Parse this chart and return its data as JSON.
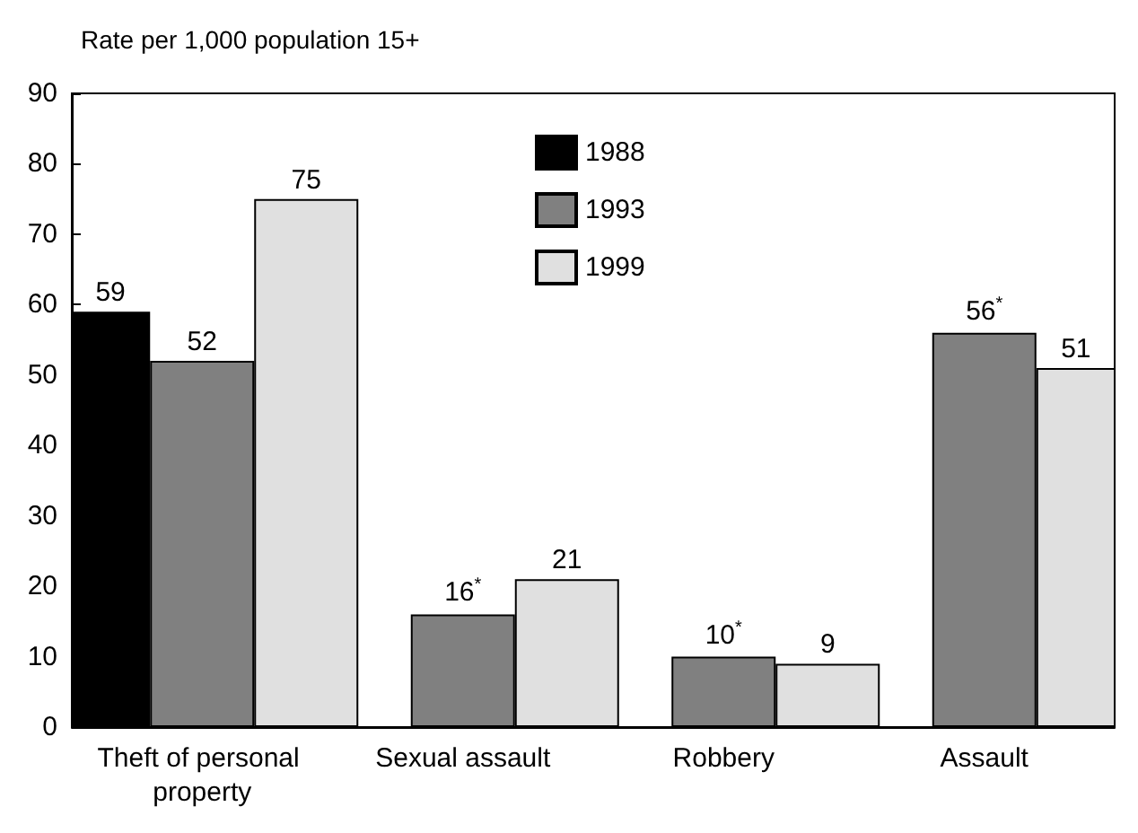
{
  "chart_data": {
    "type": "bar",
    "ylabel": "Rate per 1,000 population 15+",
    "categories": [
      "Theft of personal property",
      "Sexual assault",
      "Robbery",
      "Assault"
    ],
    "series": [
      {
        "name": "1988",
        "color": "#000000",
        "values": [
          59,
          null,
          null,
          null
        ],
        "value_labels": [
          "59",
          null,
          null,
          null
        ]
      },
      {
        "name": "1993",
        "color": "#808080",
        "values": [
          52,
          16,
          10,
          56
        ],
        "value_labels": [
          "52",
          "16$^{*}$",
          "10$^{*}$",
          "56$^{*}$"
        ]
      },
      {
        "name": "1999",
        "color": "#e0e0e0",
        "values": [
          75,
          21,
          9,
          51
        ],
        "value_labels": [
          "75",
          "21",
          "9",
          "51"
        ]
      }
    ],
    "ylim": [
      0,
      90
    ],
    "yticks": [
      0,
      10,
      20,
      30,
      40,
      50,
      60,
      70,
      80,
      90
    ],
    "grid": false,
    "legend": "top"
  }
}
